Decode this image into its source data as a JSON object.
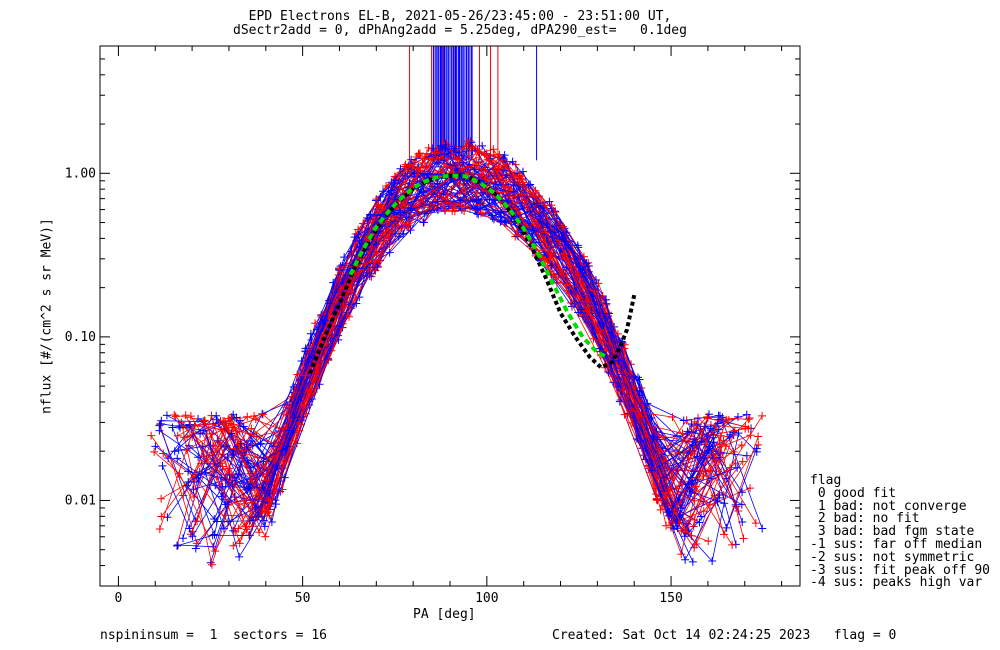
{
  "chart_data": {
    "type": "scatter",
    "title_line1": "EPD Electrons EL-B, 2021-05-26/23:45:00 - 23:51:00 UT,",
    "title_line2": "dSectr2add = 0, dPhAng2add = 5.25deg, dPA290_est=   0.1deg",
    "xlabel": "PA [deg]",
    "ylabel": "nflux [#/(cm^2 s sr MeV)]",
    "xlim": [
      -5,
      185
    ],
    "ylim": [
      0.003,
      6.0
    ],
    "yscale": "log",
    "xticks": [
      0,
      50,
      100,
      150
    ],
    "xtick_labels": [
      "0",
      "50",
      "100",
      "150"
    ],
    "yticks": [
      0.01,
      0.1,
      1.0
    ],
    "ytick_labels": [
      "0.01",
      "0.10",
      "1.00"
    ],
    "colors": {
      "spin_a": "#ff0000",
      "spin_b": "#0000ff",
      "fit_black": "#000000",
      "fit_green": "#00dd00"
    },
    "vertical_markers_red_x": [
      79,
      85,
      86,
      88,
      91,
      95,
      98,
      101,
      103
    ],
    "vertical_markers_blue_x": [
      85.5,
      86.5,
      87.5,
      88.5,
      89.5,
      90.5,
      91.5,
      92.5,
      93.5,
      94.5,
      96,
      113.5
    ],
    "vertical_markers_range": [
      1.2,
      6.0
    ],
    "profile_model": {
      "peak_x": 92,
      "peak_y": 0.97,
      "sigma_left": 17,
      "sigma_right": 19
    },
    "fit_black": {
      "x": [
        52,
        56,
        60,
        64,
        68,
        72,
        76,
        80,
        84,
        88,
        92,
        96,
        100,
        104,
        108,
        112,
        116,
        120,
        124,
        128,
        131,
        134,
        136,
        138,
        139,
        140
      ],
      "y": [
        0.06,
        0.1,
        0.16,
        0.26,
        0.38,
        0.53,
        0.67,
        0.8,
        0.9,
        0.95,
        0.97,
        0.93,
        0.83,
        0.68,
        0.52,
        0.36,
        0.23,
        0.14,
        0.1,
        0.075,
        0.065,
        0.07,
        0.085,
        0.11,
        0.14,
        0.18
      ]
    },
    "fit_green": {
      "x": [
        63,
        66,
        70,
        74,
        78,
        82,
        86,
        90,
        94,
        98,
        102,
        106,
        110,
        114,
        118,
        122,
        126,
        130,
        133
      ],
      "y": [
        0.24,
        0.33,
        0.47,
        0.61,
        0.75,
        0.87,
        0.94,
        0.97,
        0.96,
        0.88,
        0.76,
        0.61,
        0.46,
        0.32,
        0.21,
        0.14,
        0.1,
        0.08,
        0.075
      ]
    }
  },
  "legend": {
    "header": "flag",
    "items": [
      " 0 good fit",
      " 1 bad: not converge",
      " 2 bad: no fit",
      " 3 bad: bad fgm state",
      "-1 sus: far off median",
      "-2 sus: not symmetric",
      "-3 sus: fit peak off 90",
      "-4 sus: peaks high var"
    ]
  },
  "footer": {
    "left": "nspininsum =  1  sectors = 16",
    "right": "Created: Sat Oct 14 02:24:25 2023   flag = 0"
  }
}
